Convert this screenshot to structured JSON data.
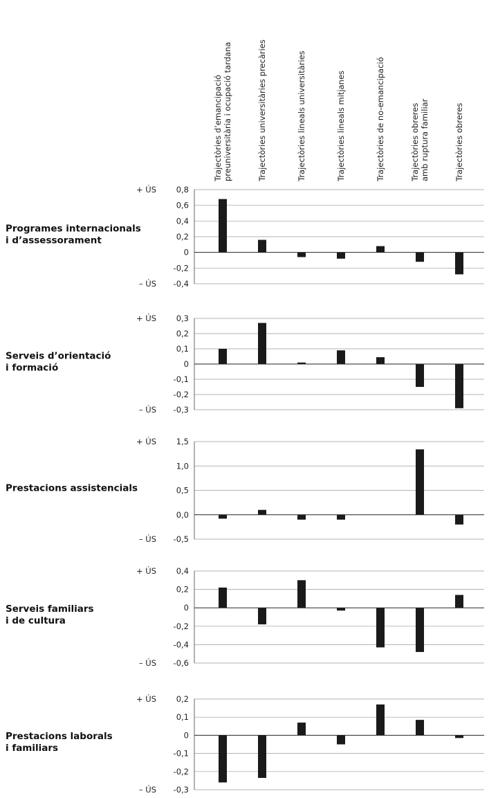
{
  "chart_data": {
    "type": "bar",
    "categories": [
      [
        "Trajectòries d’emancipació",
        "preuniversitària i ocupació tardana"
      ],
      [
        "Trajectòries universitàries precàries"
      ],
      [
        "Trajectòries lineals universitàries"
      ],
      [
        "Trajectòries lineals mitjanes"
      ],
      [
        "Trajectòries de no-emancipació"
      ],
      [
        "Trajectòries obreres",
        "amb ruptura familiar"
      ],
      [
        "Trajectòries obreres"
      ]
    ],
    "more_use_label": "+ ÚS",
    "less_use_label": "– ÚS",
    "panels": [
      {
        "title": [
          "Programes internacionals",
          "i d’assessorament"
        ],
        "ylim": [
          -0.4,
          0.8
        ],
        "ticks": [
          "0,8",
          "0,6",
          "0,4",
          "0,2",
          "0",
          "-0,2",
          "-0,4"
        ],
        "tick_values": [
          0.8,
          0.6,
          0.4,
          0.2,
          0,
          -0.2,
          -0.4
        ],
        "values": [
          0.68,
          0.16,
          -0.06,
          -0.08,
          0.08,
          -0.12,
          -0.28
        ]
      },
      {
        "title": [
          "Serveis d’orientació",
          "i formació"
        ],
        "ylim": [
          -0.3,
          0.3
        ],
        "ticks": [
          "0,3",
          "0,2",
          "0,1",
          "0",
          "-0,1",
          "-0,2",
          "-0,3"
        ],
        "tick_values": [
          0.3,
          0.2,
          0.1,
          0,
          -0.1,
          -0.2,
          -0.3
        ],
        "values": [
          0.1,
          0.27,
          0.01,
          0.09,
          0.045,
          -0.15,
          -0.29
        ]
      },
      {
        "title": [
          "Prestacions assistencials"
        ],
        "ylim": [
          -0.5,
          1.5
        ],
        "ticks": [
          "1,5",
          "1,0",
          "0,5",
          "0,0",
          "-0,5"
        ],
        "tick_values": [
          1.5,
          1.0,
          0.5,
          0.0,
          -0.5
        ],
        "values": [
          -0.08,
          0.1,
          -0.1,
          -0.1,
          0.0,
          1.34,
          -0.2
        ]
      },
      {
        "title": [
          "Serveis familiars",
          "i de cultura"
        ],
        "ylim": [
          -0.6,
          0.4
        ],
        "ticks": [
          "0,4",
          "0,2",
          "0",
          "-0,2",
          "-0,4",
          "-0,6"
        ],
        "tick_values": [
          0.4,
          0.2,
          0,
          -0.2,
          -0.4,
          -0.6
        ],
        "values": [
          0.22,
          -0.18,
          0.3,
          -0.03,
          -0.43,
          -0.48,
          0.14
        ]
      },
      {
        "title": [
          "Prestacions laborals",
          "i familiars"
        ],
        "ylim": [
          -0.3,
          0.2
        ],
        "ticks": [
          "0,2",
          "0,1",
          "0",
          "-0,1",
          "-0,2",
          "-0,3"
        ],
        "tick_values": [
          0.2,
          0.1,
          0,
          -0.1,
          -0.2,
          -0.3
        ],
        "values": [
          -0.26,
          -0.235,
          0.07,
          -0.05,
          0.17,
          0.085,
          -0.015
        ]
      }
    ]
  }
}
